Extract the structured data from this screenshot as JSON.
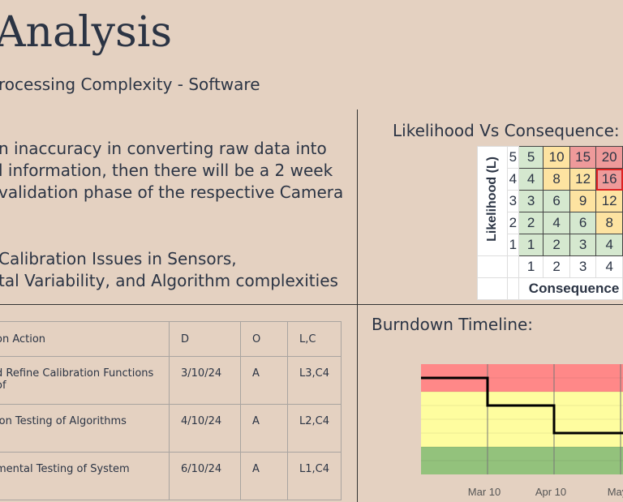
{
  "header": {
    "title": "Analysis",
    "subtitle": "rocessing Complexity - Software"
  },
  "risk_statement": [
    "n inaccuracy in converting raw data into",
    "l information, then there will be a 2 week",
    " validation phase of the respective Camera"
  ],
  "root_cause": [
    " Calibration Issues in Sensors,",
    "tal Variability, and Algorithm complexities"
  ],
  "matrix": {
    "title": "Likelihood Vs Consequence:",
    "y_label": "Likelihood (L)",
    "x_label": "Consequence",
    "likelihood_levels": [
      "5",
      "4",
      "3",
      "2",
      "1"
    ],
    "consequence_levels": [
      "1",
      "2",
      "3",
      "4"
    ],
    "rows": [
      [
        "5",
        "10",
        "15",
        "20"
      ],
      [
        "4",
        "8",
        "12",
        "16"
      ],
      [
        "3",
        "6",
        "9",
        "12"
      ],
      [
        "2",
        "4",
        "6",
        "8"
      ],
      [
        "1",
        "2",
        "3",
        "4"
      ]
    ],
    "classes": [
      [
        "g",
        "y",
        "r",
        "r"
      ],
      [
        "g",
        "y",
        "y",
        "r hi"
      ],
      [
        "g",
        "g",
        "y",
        "y"
      ],
      [
        "g",
        "g",
        "g",
        "y"
      ],
      [
        "g",
        "g",
        "g",
        "g"
      ]
    ],
    "highlighted": "L4,C4",
    "colors": {
      "green": "#d5e8cf",
      "yellow": "#fde3a1",
      "red": "#ee9a9a",
      "highlight": "#dd2222"
    }
  },
  "table": {
    "headers": [
      "on Action",
      "D",
      "O",
      "L,C"
    ],
    "rows": [
      [
        "d Refine Calibration Functions of",
        "3/10/24",
        "A",
        "L3,C4"
      ],
      [
        "ion Testing of Algorithms",
        "4/10/24",
        "A",
        "L2,C4"
      ],
      [
        "mental Testing of System",
        "6/10/24",
        "A",
        "L1,C4"
      ]
    ]
  },
  "chart_data": {
    "type": "line",
    "title": "Burndown Timeline:",
    "x_ticks": [
      "Mar 10",
      "Apr 10",
      "May"
    ],
    "ylim": [
      0,
      8
    ],
    "bands": [
      {
        "from": 6,
        "to": 8,
        "color": "#ff8888"
      },
      {
        "from": 2,
        "to": 6,
        "color": "#fefd9f"
      },
      {
        "from": 0,
        "to": 2,
        "color": "#93c27c"
      }
    ],
    "steps": [
      {
        "from": "start",
        "to": "Mar 10",
        "level": 7
      },
      {
        "from": "Mar 10",
        "to": "Apr 10",
        "level": 5
      },
      {
        "from": "Apr 10",
        "to": "end",
        "level": 3
      }
    ],
    "grid": true
  }
}
